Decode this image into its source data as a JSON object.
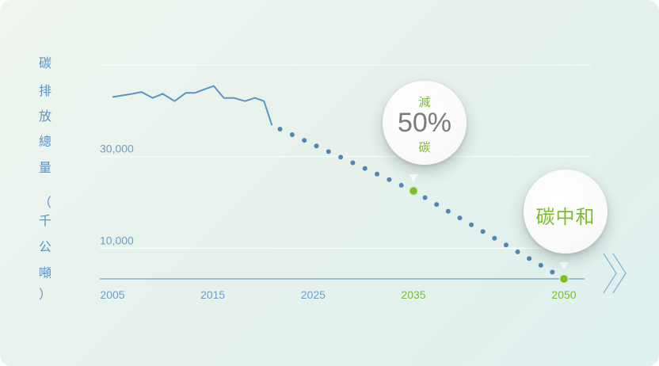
{
  "y_axis_label_chars": [
    "碳",
    "排",
    "放",
    "總",
    "量",
    "（",
    "千",
    "公",
    "噸",
    "）"
  ],
  "chart_data": {
    "type": "line",
    "title": "",
    "xlabel": "",
    "ylabel": "碳排放總量（千公噸）",
    "x_ticks": [
      {
        "label": "2005",
        "value": 2005,
        "highlight": false
      },
      {
        "label": "2015",
        "value": 2015,
        "highlight": false
      },
      {
        "label": "2025",
        "value": 2025,
        "highlight": false
      },
      {
        "label": "2035",
        "value": 2035,
        "highlight": true
      },
      {
        "label": "2050",
        "value": 2050,
        "highlight": true
      }
    ],
    "y_ticks": [
      {
        "label": "30,000",
        "value": 30000
      },
      {
        "label": "10,000",
        "value": 10000
      }
    ],
    "grid_y_values": [
      50000,
      30000,
      10000
    ],
    "xlim": [
      2005,
      2050
    ],
    "ylim": [
      3300,
      50000
    ],
    "series": [
      {
        "style": "solid",
        "color": "#5b95c3",
        "points": [
          {
            "x": 2005,
            "y": 43000
          },
          {
            "x": 2007,
            "y": 43700
          },
          {
            "x": 2007.9,
            "y": 44100
          },
          {
            "x": 2009,
            "y": 42800
          },
          {
            "x": 2010,
            "y": 43700
          },
          {
            "x": 2011.2,
            "y": 42100
          },
          {
            "x": 2012.3,
            "y": 43900
          },
          {
            "x": 2013.2,
            "y": 43900
          },
          {
            "x": 2014.2,
            "y": 44700
          },
          {
            "x": 2015.1,
            "y": 45400
          },
          {
            "x": 2016.1,
            "y": 42800
          },
          {
            "x": 2017.1,
            "y": 42800
          },
          {
            "x": 2018.2,
            "y": 42100
          },
          {
            "x": 2019.2,
            "y": 42800
          },
          {
            "x": 2020.1,
            "y": 42100
          },
          {
            "x": 2020.9,
            "y": 36800
          }
        ]
      },
      {
        "style": "dotted",
        "color": "#4f86b6",
        "points": [
          {
            "x": 2021.7,
            "y": 36000
          },
          {
            "x": 2035,
            "y": 22500
          },
          {
            "x": 2050,
            "y": 3300
          }
        ]
      }
    ],
    "markers": [
      {
        "x": 2035,
        "y": 22500,
        "color": "#7bbd2f"
      },
      {
        "x": 2050,
        "y": 3300,
        "color": "#7bbd2f"
      }
    ],
    "annotations": [
      {
        "top": "減",
        "main": "50%",
        "bottom": "碳",
        "x": 2035
      },
      {
        "main": "碳中和",
        "x": 2050
      }
    ]
  },
  "colors": {
    "line": "#5b95c3",
    "tick_text": "#6f9fc8",
    "highlight_green": "#7bbd2f",
    "gridline": "#ffffff",
    "baseline": "#6f9fc8"
  }
}
